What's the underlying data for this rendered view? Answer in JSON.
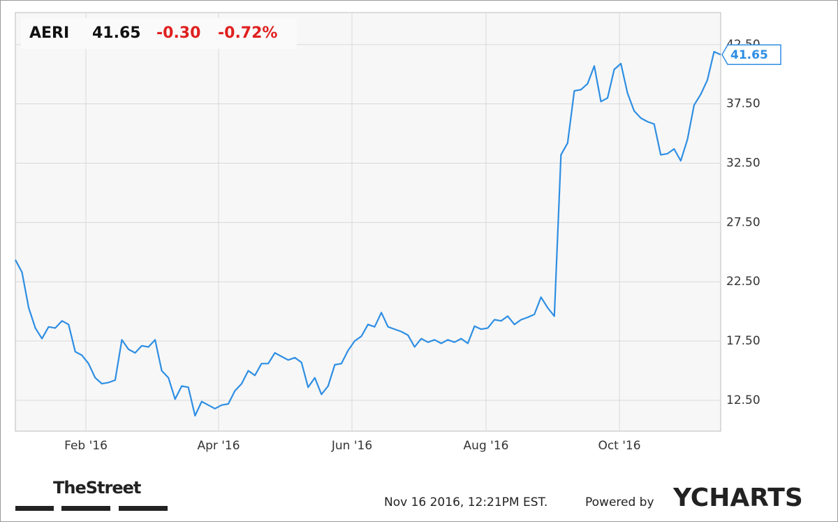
{
  "chart_data": {
    "type": "line",
    "ticker": "AERI",
    "price": "41.65",
    "change": "-0.30",
    "change_pct": "-0.72%",
    "series": [
      {
        "name": "AERI",
        "color": "#2e8ee3",
        "values": [
          24.35,
          23.3,
          20.3,
          18.6,
          17.7,
          18.7,
          18.6,
          19.2,
          18.9,
          16.6,
          16.3,
          15.6,
          14.4,
          13.9,
          14.0,
          14.2,
          17.6,
          16.8,
          16.5,
          17.1,
          17.0,
          17.6,
          15.0,
          14.4,
          12.6,
          13.7,
          13.6,
          11.2,
          12.4,
          12.1,
          11.8,
          12.1,
          12.2,
          13.3,
          13.9,
          15.0,
          14.6,
          15.6,
          15.6,
          16.5,
          16.2,
          15.9,
          16.1,
          15.7,
          13.6,
          14.4,
          13.0,
          13.7,
          15.5,
          15.6,
          16.7,
          17.5,
          17.9,
          18.9,
          18.7,
          19.9,
          18.7,
          18.5,
          18.3,
          18.0,
          17.0,
          17.7,
          17.4,
          17.6,
          17.3,
          17.6,
          17.4,
          17.7,
          17.3,
          18.75,
          18.5,
          18.6,
          19.3,
          19.2,
          19.6,
          18.9,
          19.3,
          19.5,
          19.75,
          21.2,
          20.3,
          19.6,
          33.2,
          34.2,
          38.6,
          38.7,
          39.2,
          40.7,
          37.7,
          38.0,
          40.4,
          40.9,
          38.4,
          36.9,
          36.3,
          36.0,
          35.8,
          33.2,
          33.3,
          33.7,
          32.7,
          34.5,
          37.4,
          38.3,
          39.5,
          41.9,
          41.65
        ]
      }
    ],
    "xticks": [
      "Feb '16",
      "Apr '16",
      "Jun '16",
      "Aug '16",
      "Oct '16"
    ],
    "ylim": [
      9.9,
      45.2
    ],
    "yticks": [
      {
        "value": 12.5,
        "label": "12.50"
      },
      {
        "value": 17.5,
        "label": "17.50"
      },
      {
        "value": 22.5,
        "label": "22.50"
      },
      {
        "value": 27.5,
        "label": "27.50"
      },
      {
        "value": 32.5,
        "label": "32.50"
      },
      {
        "value": 37.5,
        "label": "37.50"
      },
      {
        "value": 42.5,
        "label": "42.50"
      }
    ],
    "grid": true,
    "source": "TheStreet",
    "timestamp": "Nov 16 2016, 12:21PM EST.",
    "powered_by": "Powered by",
    "brand": "YCHARTS"
  }
}
